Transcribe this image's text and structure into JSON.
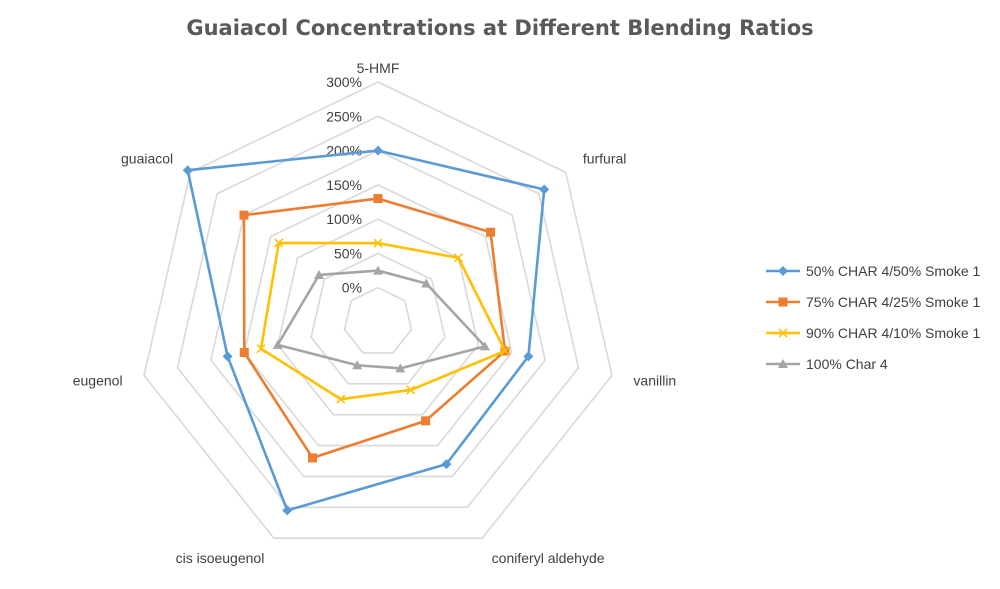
{
  "chart_data": {
    "type": "radar",
    "title": "Guaiacol Concentrations at Different Blending Ratios",
    "categories": [
      "5-HMF",
      "furfural",
      "vanillin",
      "coniferyl aldehyde",
      "cis isoeugenol",
      "eugenol",
      "guaiacol"
    ],
    "tick_labels": [
      "0%",
      "50%",
      "100%",
      "150%",
      "200%",
      "250%",
      "300%"
    ],
    "rmin": -50,
    "rmax": 300,
    "grid": true,
    "legend_position": "right",
    "series": [
      {
        "name": "50% CHAR 4/50% Smoke 1",
        "color": "#5B9BD5",
        "marker": "diamond",
        "values": [
          200,
          260,
          175,
          180,
          255,
          175,
          305
        ]
      },
      {
        "name": "75% CHAR 4/25% Smoke 1",
        "color": "#ED7D31",
        "marker": "square",
        "values": [
          130,
          160,
          140,
          110,
          170,
          150,
          200
        ]
      },
      {
        "name": "90% CHAR 4/10% Smoke 1",
        "color": "#FFC000",
        "marker": "x",
        "values": [
          65,
          100,
          140,
          60,
          75,
          125,
          135
        ]
      },
      {
        "name": "100% Char 4",
        "color": "#A5A5A5",
        "marker": "triangle",
        "values": [
          25,
          40,
          110,
          25,
          20,
          100,
          60
        ]
      }
    ]
  }
}
